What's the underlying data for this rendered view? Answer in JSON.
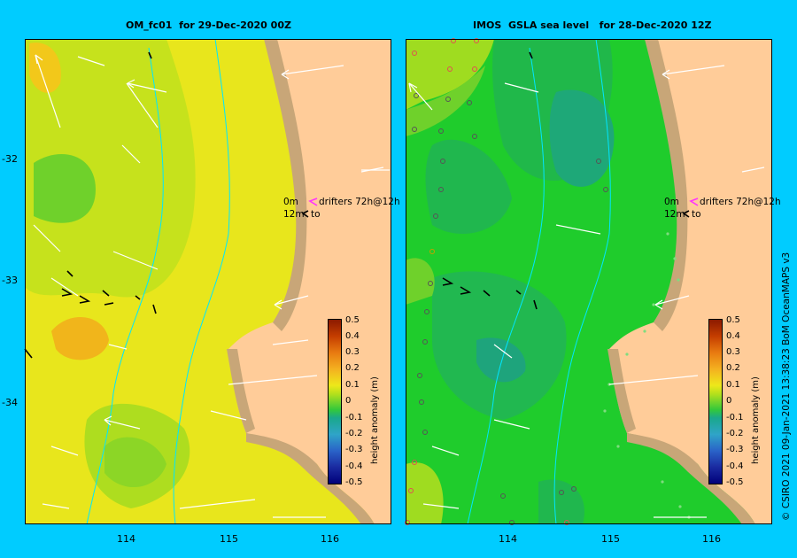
{
  "left_panel": {
    "title": "OM_fc01  for 29-Dec-2020 00Z",
    "legend_row1": {
      "depth": "0m",
      "text": "drifters 72h@12h"
    },
    "legend_row2": {
      "depth": "12m",
      "text": "to"
    },
    "colorbar_label": "height anomaly (m)"
  },
  "right_panel": {
    "title": "IMOS  GSLA sea level   for 28-Dec-2020 12Z",
    "legend_row1": {
      "depth": "0m",
      "text": "drifters 72h@12h"
    },
    "legend_row2": {
      "depth": "12m",
      "text": "to"
    },
    "colorbar_label": "height anomaly (m)"
  },
  "colorbar_ticks": [
    "0.5",
    "0.4",
    "0.3",
    "0.2",
    "0.1",
    "0",
    "-0.1",
    "-0.2",
    "-0.3",
    "-0.4",
    "-0.5"
  ],
  "lat_ticks": [
    "-32",
    "-33",
    "-34"
  ],
  "lon_ticks": [
    "114",
    "115",
    "116"
  ],
  "credit": "© CSIRO 2021   09-Jan-2021 13:38:23 BoM OceanMAPS v3",
  "colors": {
    "background": "#00ccff",
    "land": "#ffcc99",
    "shelf": "#c8a678",
    "arrow": "#ffffff",
    "drifter_legend": "#ff33ff"
  }
}
